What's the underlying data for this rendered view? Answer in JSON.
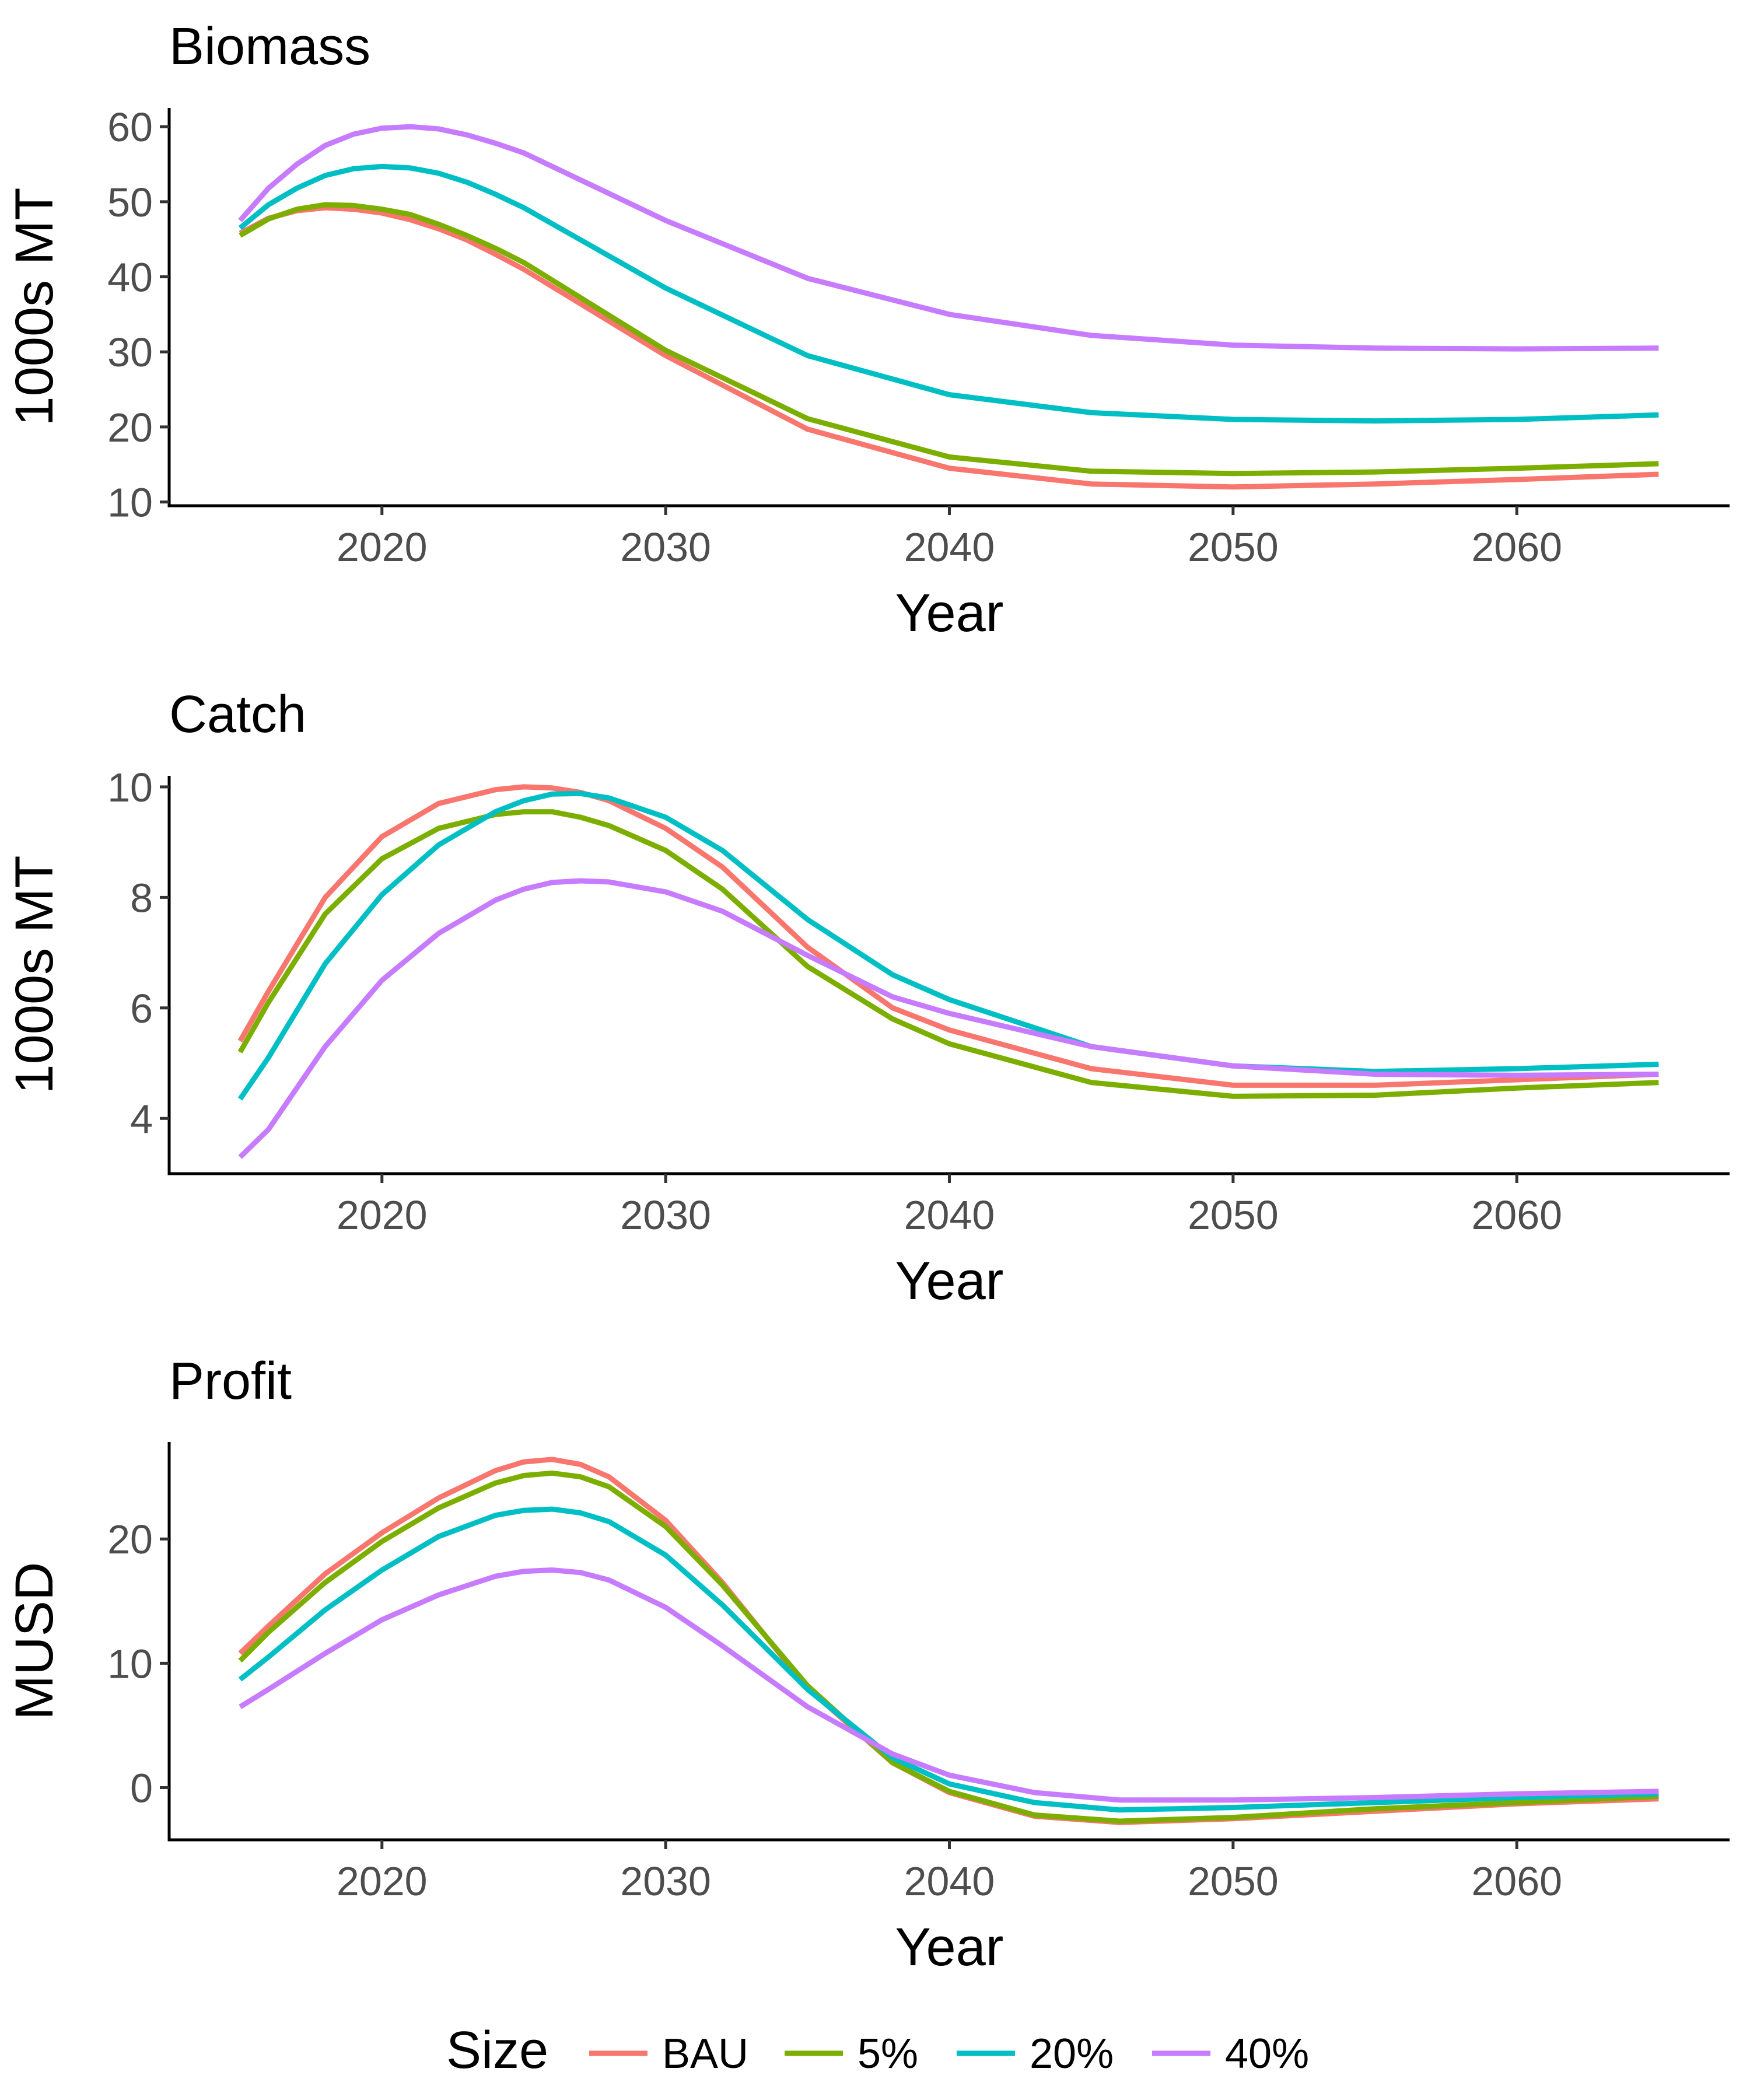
{
  "legend": {
    "title": "Size",
    "entries": [
      {
        "label": "BAU",
        "color": "#F8766D"
      },
      {
        "label": "5%",
        "color": "#7CAE00"
      },
      {
        "label": "20%",
        "color": "#00BFC4"
      },
      {
        "label": "40%",
        "color": "#C77CFF"
      }
    ],
    "placement": "bottom"
  },
  "chart_data": [
    {
      "type": "line",
      "title": "Biomass",
      "xlabel": "Year",
      "ylabel": "1000s MT",
      "xlim": [
        2012.5,
        2067.5
      ],
      "ylim": [
        9.5,
        62.5
      ],
      "x_ticks": [
        2020,
        2030,
        2040,
        2050,
        2060
      ],
      "y_ticks": [
        10,
        20,
        30,
        40,
        50,
        60
      ],
      "grid": false,
      "x": [
        2015,
        2016,
        2017,
        2018,
        2019,
        2020,
        2021,
        2022,
        2023,
        2024,
        2025,
        2030,
        2035,
        2040,
        2045,
        2050,
        2055,
        2060,
        2065
      ],
      "series": [
        {
          "name": "BAU",
          "values": [
            45.8,
            47.8,
            48.8,
            49.2,
            49.0,
            48.5,
            47.6,
            46.4,
            44.9,
            43.0,
            41.0,
            29.5,
            19.7,
            14.5,
            12.4,
            12.0,
            12.4,
            13.0,
            13.7
          ]
        },
        {
          "name": "5%",
          "values": [
            45.5,
            47.7,
            49.0,
            49.6,
            49.5,
            49.0,
            48.3,
            47.0,
            45.5,
            43.8,
            41.9,
            30.2,
            21.1,
            16.0,
            14.1,
            13.8,
            14.0,
            14.5,
            15.1
          ]
        },
        {
          "name": "20%",
          "values": [
            46.5,
            49.6,
            51.8,
            53.5,
            54.4,
            54.7,
            54.5,
            53.8,
            52.6,
            51.0,
            49.2,
            38.5,
            29.5,
            24.3,
            21.9,
            21.0,
            20.8,
            21.0,
            21.6
          ]
        },
        {
          "name": "40%",
          "values": [
            47.5,
            51.8,
            55.0,
            57.5,
            59.0,
            59.8,
            60.0,
            59.7,
            58.9,
            57.8,
            56.5,
            47.5,
            39.8,
            35.0,
            32.2,
            30.9,
            30.5,
            30.4,
            30.5
          ]
        }
      ]
    },
    {
      "type": "line",
      "title": "Catch",
      "xlabel": "Year",
      "ylabel": "1000s MT",
      "xlim": [
        2012.5,
        2067.5
      ],
      "ylim": [
        3.0,
        10.2
      ],
      "x_ticks": [
        2020,
        2030,
        2040,
        2050,
        2060
      ],
      "y_ticks": [
        4,
        6,
        8,
        10
      ],
      "grid": false,
      "x": [
        2015,
        2016,
        2018,
        2020,
        2022,
        2024,
        2025,
        2026,
        2027,
        2028,
        2030,
        2032,
        2035,
        2038,
        2040,
        2045,
        2050,
        2055,
        2060,
        2065
      ],
      "series": [
        {
          "name": "BAU",
          "values": [
            5.4,
            6.3,
            8.0,
            9.1,
            9.7,
            9.95,
            10.0,
            9.98,
            9.9,
            9.75,
            9.25,
            8.55,
            7.1,
            6.0,
            5.6,
            4.9,
            4.6,
            4.6,
            4.7,
            4.8
          ]
        },
        {
          "name": "5%",
          "values": [
            5.2,
            6.1,
            7.7,
            8.7,
            9.25,
            9.5,
            9.55,
            9.55,
            9.45,
            9.3,
            8.85,
            8.15,
            6.75,
            5.8,
            5.35,
            4.65,
            4.4,
            4.42,
            4.55,
            4.65
          ]
        },
        {
          "name": "20%",
          "values": [
            4.35,
            5.1,
            6.8,
            8.05,
            8.95,
            9.55,
            9.75,
            9.87,
            9.88,
            9.8,
            9.45,
            8.85,
            7.6,
            6.6,
            6.15,
            5.3,
            4.95,
            4.85,
            4.9,
            4.98
          ]
        },
        {
          "name": "40%",
          "values": [
            3.3,
            3.8,
            5.3,
            6.5,
            7.35,
            7.95,
            8.15,
            8.27,
            8.3,
            8.28,
            8.1,
            7.75,
            6.95,
            6.2,
            5.9,
            5.3,
            4.95,
            4.8,
            4.78,
            4.8
          ]
        }
      ]
    },
    {
      "type": "line",
      "title": "Profit",
      "xlabel": "Year",
      "ylabel": "MUSD",
      "xlim": [
        2012.5,
        2067.5
      ],
      "ylim": [
        -4.2,
        27.8
      ],
      "x_ticks": [
        2020,
        2030,
        2040,
        2050,
        2060
      ],
      "y_ticks": [
        0,
        10,
        20
      ],
      "grid": false,
      "x": [
        2015,
        2016,
        2018,
        2020,
        2022,
        2024,
        2025,
        2026,
        2027,
        2028,
        2030,
        2032,
        2035,
        2038,
        2040,
        2043,
        2046,
        2050,
        2055,
        2060,
        2065
      ],
      "series": [
        {
          "name": "BAU",
          "values": [
            10.8,
            13.0,
            17.2,
            20.5,
            23.3,
            25.5,
            26.2,
            26.4,
            26.0,
            25.0,
            21.5,
            16.5,
            8.0,
            2.0,
            -0.4,
            -2.3,
            -2.8,
            -2.5,
            -1.9,
            -1.3,
            -0.9
          ]
        },
        {
          "name": "5%",
          "values": [
            10.2,
            12.5,
            16.5,
            19.8,
            22.5,
            24.5,
            25.1,
            25.3,
            25.0,
            24.2,
            21.0,
            16.3,
            8.2,
            2.0,
            -0.3,
            -2.2,
            -2.7,
            -2.4,
            -1.7,
            -1.2,
            -0.7
          ]
        },
        {
          "name": "20%",
          "values": [
            8.7,
            10.5,
            14.3,
            17.5,
            20.2,
            21.9,
            22.3,
            22.4,
            22.1,
            21.4,
            18.7,
            14.7,
            7.9,
            2.4,
            0.3,
            -1.2,
            -1.8,
            -1.6,
            -1.2,
            -0.8,
            -0.5
          ]
        },
        {
          "name": "40%",
          "values": [
            6.5,
            7.9,
            10.8,
            13.5,
            15.5,
            17.0,
            17.4,
            17.5,
            17.3,
            16.7,
            14.5,
            11.4,
            6.5,
            2.7,
            1.0,
            -0.4,
            -1.0,
            -1.0,
            -0.8,
            -0.5,
            -0.3
          ]
        }
      ]
    }
  ]
}
